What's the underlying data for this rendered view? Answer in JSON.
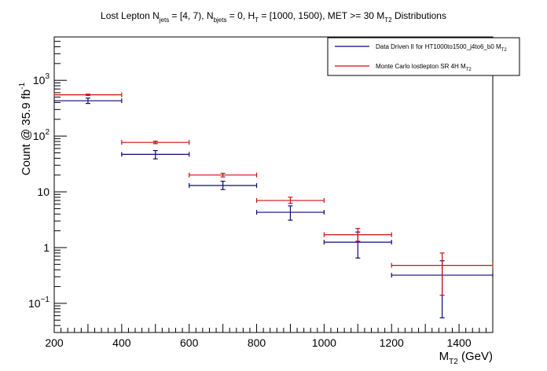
{
  "chart_data": {
    "type": "scatter",
    "title_parts": {
      "t1": "Lost Lepton N",
      "t1_sub": "jets",
      "t2": " = [4, 7), N",
      "t2_sub": "bjets",
      "t3": " = 0, H",
      "t3_sub": "T",
      "t4": " = [1000, 1500), MET >= 30 M",
      "t4_sub": "T2",
      "t5": " Distributions"
    },
    "xlabel": {
      "main": "M",
      "sub": "T2",
      "unit": " (GeV)"
    },
    "ylabel": {
      "main": "Count @ 35.9 fb",
      "sup": "-1"
    },
    "xlim": [
      200,
      1500
    ],
    "ylim": [
      0.03,
      6000
    ],
    "yscale": "log",
    "x_ticks": [
      "200",
      "400",
      "600",
      "800",
      "1000",
      "1200",
      "1400"
    ],
    "x_tick_values": [
      200,
      400,
      600,
      800,
      1000,
      1200,
      1400
    ],
    "y_tick_labels": [
      {
        "value": 0.1,
        "base": "10",
        "exp": "−1"
      },
      {
        "value": 1,
        "base": "1",
        "exp": ""
      },
      {
        "value": 10,
        "base": "10",
        "exp": ""
      },
      {
        "value": 100,
        "base": "10",
        "exp": "2"
      },
      {
        "value": 1000,
        "base": "10",
        "exp": "3"
      }
    ],
    "legend": {
      "position": "top-right",
      "entries": [
        {
          "label": "Data Driven II for HT1000to1500_j4to6_b0 M",
          "sub": "T2",
          "series": 0
        },
        {
          "label": "Monte Carlo lostlepton SR 4H M",
          "sub": "T2",
          "series": 1
        }
      ]
    },
    "series": [
      {
        "color": "#0a0a78",
        "points": [
          {
            "xlo": 200,
            "xhi": 400,
            "y": 430,
            "ylo": 385,
            "yhi": 480
          },
          {
            "xlo": 400,
            "xhi": 600,
            "y": 47,
            "ylo": 39,
            "yhi": 55
          },
          {
            "xlo": 600,
            "xhi": 800,
            "y": 13,
            "ylo": 11,
            "yhi": 15.5
          },
          {
            "xlo": 800,
            "xhi": 1000,
            "y": 4.3,
            "ylo": 3.1,
            "yhi": 5.6
          },
          {
            "xlo": 1000,
            "xhi": 1200,
            "y": 1.25,
            "ylo": 0.65,
            "yhi": 1.9
          },
          {
            "xlo": 1200,
            "xhi": 1500,
            "y": 0.32,
            "ylo": 0.055,
            "yhi": 0.58
          }
        ]
      },
      {
        "color": "#cc1111",
        "points": [
          {
            "xlo": 200,
            "xhi": 400,
            "y": 550,
            "ylo": 535,
            "yhi": 565
          },
          {
            "xlo": 400,
            "xhi": 600,
            "y": 77,
            "ylo": 73,
            "yhi": 81
          },
          {
            "xlo": 600,
            "xhi": 800,
            "y": 20,
            "ylo": 18.5,
            "yhi": 21.5
          },
          {
            "xlo": 800,
            "xhi": 1000,
            "y": 7,
            "ylo": 6.2,
            "yhi": 8
          },
          {
            "xlo": 1000,
            "xhi": 1200,
            "y": 1.7,
            "ylo": 1.3,
            "yhi": 2.2
          },
          {
            "xlo": 1200,
            "xhi": 1500,
            "y": 0.48,
            "ylo": 0.14,
            "yhi": 0.8
          }
        ]
      }
    ]
  }
}
